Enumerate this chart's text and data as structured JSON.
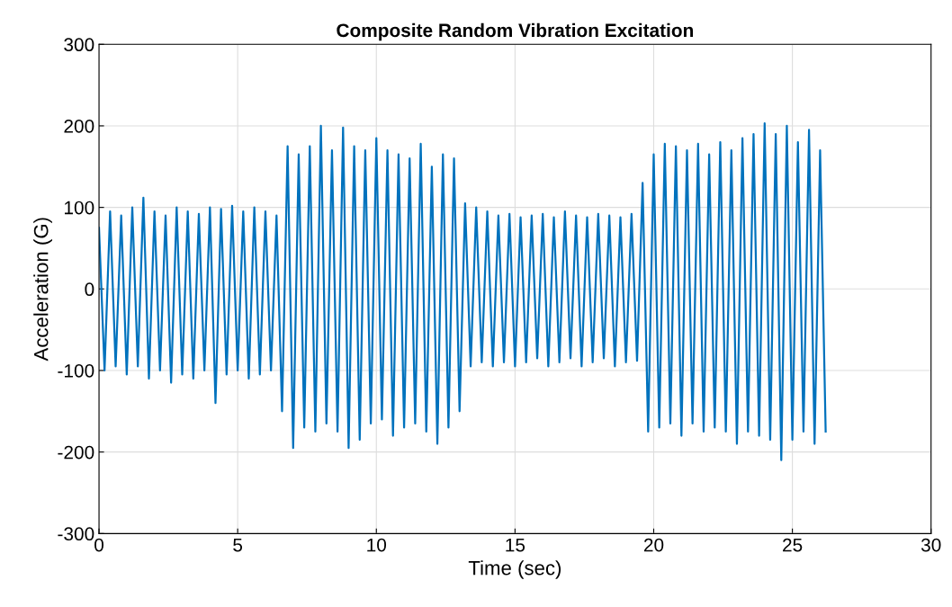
{
  "chart_data": {
    "type": "line",
    "title": "Composite Random Vibration Excitation",
    "xlabel": "Time (sec)",
    "ylabel": "Acceleration (G)",
    "xlim": [
      0,
      30
    ],
    "xticks": [
      0,
      5,
      10,
      15,
      20,
      25,
      30
    ],
    "ylim": [
      -300,
      300
    ],
    "yticks": [
      -300,
      -200,
      -100,
      0,
      100,
      200,
      300
    ],
    "grid": true,
    "marker": "none",
    "line_style": "solid",
    "series": [
      {
        "color": "#0072bd",
        "x": [
          0.0,
          0.2,
          0.4,
          0.6,
          0.8,
          1.0,
          1.2,
          1.4,
          1.6,
          1.8,
          2.0,
          2.2,
          2.4,
          2.6,
          2.8,
          3.0,
          3.2,
          3.4,
          3.6,
          3.8,
          4.0,
          4.2,
          4.4,
          4.6,
          4.8,
          5.0,
          5.2,
          5.4,
          5.6,
          5.8,
          6.0,
          6.2,
          6.4,
          6.6,
          6.8,
          7.0,
          7.2,
          7.4,
          7.6,
          7.8,
          8.0,
          8.2,
          8.4,
          8.6,
          8.8,
          9.0,
          9.2,
          9.4,
          9.6,
          9.8,
          10.0,
          10.2,
          10.4,
          10.6,
          10.8,
          11.0,
          11.2,
          11.4,
          11.6,
          11.8,
          12.0,
          12.2,
          12.4,
          12.6,
          12.8,
          13.0,
          13.2,
          13.4,
          13.6,
          13.8,
          14.0,
          14.2,
          14.4,
          14.6,
          14.8,
          15.0,
          15.2,
          15.4,
          15.6,
          15.8,
          16.0,
          16.2,
          16.4,
          16.6,
          16.8,
          17.0,
          17.2,
          17.4,
          17.6,
          17.8,
          18.0,
          18.2,
          18.4,
          18.6,
          18.8,
          19.0,
          19.2,
          19.4,
          19.6,
          19.8,
          20.0,
          20.2,
          20.4,
          20.6,
          20.8,
          21.0,
          21.2,
          21.4,
          21.6,
          21.8,
          22.0,
          22.2,
          22.4,
          22.6,
          22.8,
          23.0,
          23.2,
          23.4,
          23.6,
          23.8,
          24.0,
          24.2,
          24.4,
          24.6,
          24.8,
          25.0,
          25.2,
          25.4,
          25.6,
          25.8,
          26.0,
          26.2
        ],
        "values": [
          75,
          -100,
          95,
          -95,
          90,
          -105,
          100,
          -95,
          112,
          -110,
          95,
          -100,
          90,
          -115,
          100,
          -105,
          95,
          -110,
          92,
          -100,
          100,
          -140,
          98,
          -105,
          102,
          -100,
          95,
          -110,
          100,
          -105,
          95,
          -100,
          90,
          -150,
          175,
          -195,
          165,
          -170,
          175,
          -175,
          200,
          -165,
          170,
          -175,
          198,
          -195,
          175,
          -185,
          170,
          -165,
          185,
          -160,
          170,
          -180,
          165,
          -170,
          160,
          -165,
          178,
          -175,
          150,
          -190,
          165,
          -170,
          160,
          -150,
          105,
          -95,
          100,
          -90,
          95,
          -95,
          90,
          -90,
          92,
          -95,
          88,
          -90,
          90,
          -85,
          92,
          -95,
          88,
          -90,
          95,
          -85,
          90,
          -95,
          88,
          -90,
          92,
          -85,
          90,
          -95,
          88,
          -90,
          92,
          -88,
          130,
          -175,
          165,
          -170,
          178,
          -165,
          175,
          -180,
          170,
          -165,
          178,
          -175,
          165,
          -170,
          180,
          -175,
          170,
          -190,
          185,
          -175,
          190,
          -180,
          203,
          -185,
          190,
          -210,
          200,
          -185,
          180,
          -175,
          195,
          -190,
          170,
          -175
        ]
      }
    ]
  }
}
